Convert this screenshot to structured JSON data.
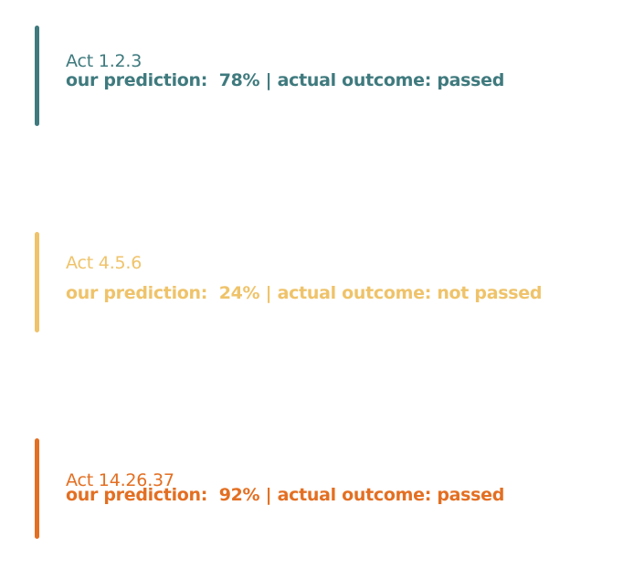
{
  "entries": [
    {
      "act": "Act 1.2.3",
      "prediction_label": "our prediction:",
      "prediction_value": "78%",
      "separator": "|",
      "outcome_label": "actual outcome:",
      "outcome_value": "passed",
      "color": "#3f7a7e"
    },
    {
      "act": "Act 4.5.6",
      "prediction_label": "our prediction:",
      "prediction_value": "24%",
      "separator": "|",
      "outcome_label": "actual outcome:",
      "outcome_value": "not passed",
      "color": "#efc36a"
    },
    {
      "act": "Act 14.26.37",
      "prediction_label": "our prediction:",
      "prediction_value": "92%",
      "separator": "|",
      "outcome_label": "actual outcome:",
      "outcome_value": "passed",
      "color": "#e36f22"
    }
  ]
}
